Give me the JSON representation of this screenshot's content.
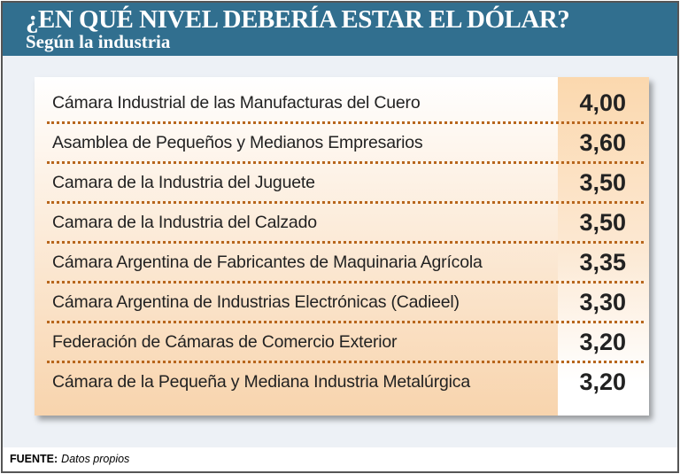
{
  "header": {
    "title": "¿EN QUÉ NIVEL DEBERÍA ESTAR EL DÓLAR?",
    "subtitle": "Según la industria"
  },
  "chart_data": {
    "type": "table",
    "title": "¿EN QUÉ NIVEL DEBERÍA ESTAR EL DÓLAR?",
    "subtitle": "Según la industria",
    "rows": [
      {
        "label": "Cámara Industrial de las Manufacturas del Cuero",
        "value": "4,00"
      },
      {
        "label": "Asamblea de Pequeños y Medianos Empresarios",
        "value": "3,60"
      },
      {
        "label": "Camara de la Industria del Juguete",
        "value": "3,50"
      },
      {
        "label": "Camara de la Industria del Calzado",
        "value": "3,50"
      },
      {
        "label": "Cámara Argentina de Fabricantes de Maquinaria Agrícola",
        "value": "3,35"
      },
      {
        "label": "Cámara Argentina de Industrias Electrónicas (Cadieel)",
        "value": "3,30"
      },
      {
        "label": "Federación de Cámaras de Comercio Exterior",
        "value": "3,20"
      },
      {
        "label": "Cámara de la Pequeña y Mediana Industria Metalúrgica",
        "value": "3,20"
      }
    ]
  },
  "footer": {
    "source_label": "FUENTE:",
    "source_value": "Datos propios"
  },
  "colors": {
    "header": "#316f8f",
    "peach": "#f8d4ad",
    "separator": "#b8661c"
  }
}
